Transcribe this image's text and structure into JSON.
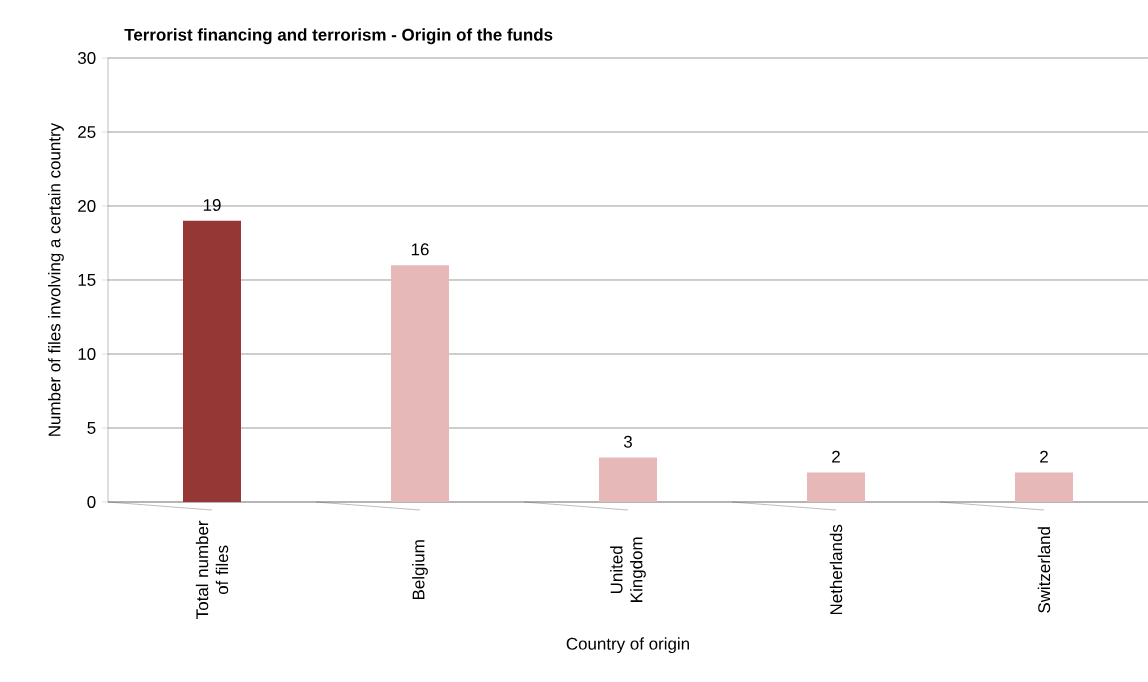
{
  "chart_data": {
    "type": "bar",
    "title": "Terrorist financing and terrorism - Origin of the funds",
    "xlabel": "Country of origin",
    "ylabel": "Number of files involving a certain country",
    "categories": [
      "Total number of files",
      "Belgium",
      "United Kingdom",
      "Netherlands",
      "Switzerland"
    ],
    "values": [
      19,
      16,
      3,
      2,
      2
    ],
    "colors": [
      "#953735",
      "#e6b9b8",
      "#e6b9b8",
      "#e6b9b8",
      "#e6b9b8"
    ],
    "ylim": [
      0,
      30
    ],
    "yticks": [
      0,
      5,
      10,
      15,
      20,
      25,
      30
    ],
    "grid": "y",
    "data_labels": true
  }
}
